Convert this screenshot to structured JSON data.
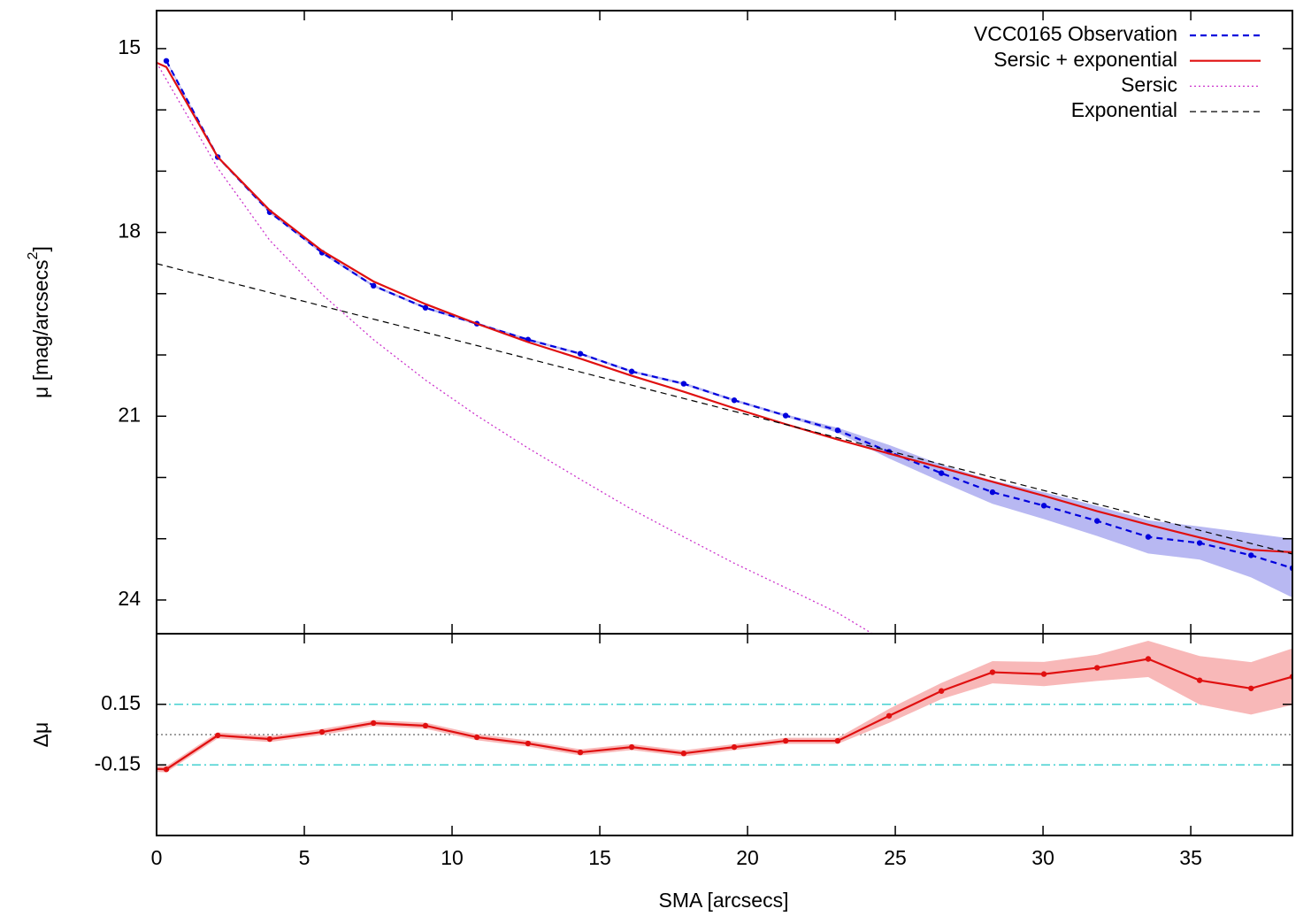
{
  "chart_data": [
    {
      "type": "line",
      "ylabel": [
        "μ [mag/arcsecs",
        "2",
        "]"
      ],
      "xlim": [
        0,
        38.44
      ],
      "ylim": [
        14.38,
        24.55
      ],
      "y_inverted": true,
      "yticks": [
        15,
        18,
        21,
        24
      ],
      "yminorticks": [
        16,
        17,
        19,
        20,
        22,
        23
      ],
      "legend": "upper right",
      "series": [
        {
          "name": "VCC0165 Observation",
          "color": "#0000dd",
          "style": "dashed",
          "markers": true,
          "band_color": "#b8b8f2",
          "x": [
            0.33,
            2.07,
            3.83,
            5.6,
            7.34,
            9.1,
            10.84,
            12.57,
            14.34,
            16.08,
            17.84,
            19.55,
            21.29,
            23.05,
            24.79,
            26.56,
            28.29,
            30.03,
            31.83,
            33.56,
            35.3,
            37.04,
            38.44
          ],
          "values": [
            15.2,
            16.77,
            17.67,
            18.33,
            18.87,
            19.23,
            19.49,
            19.75,
            19.98,
            20.27,
            20.47,
            20.74,
            20.99,
            21.23,
            21.58,
            21.93,
            22.24,
            22.46,
            22.71,
            22.97,
            23.07,
            23.27,
            23.48
          ],
          "errors": [
            0.02,
            0.02,
            0.02,
            0.02,
            0.02,
            0.02,
            0.02,
            0.02,
            0.02,
            0.02,
            0.02,
            0.02,
            0.02,
            0.04,
            0.11,
            0.14,
            0.19,
            0.22,
            0.245,
            0.27,
            0.27,
            0.36,
            0.48
          ]
        },
        {
          "name": "Sersic + exponential",
          "color": "#e01010",
          "style": "solid",
          "x": [
            0,
            0.33,
            2.07,
            3.83,
            5.6,
            7.34,
            9.1,
            10.84,
            12.57,
            14.34,
            16.08,
            17.84,
            19.55,
            21.29,
            23.05,
            24.79,
            26.56,
            28.29,
            30.03,
            31.83,
            33.56,
            35.3,
            37.04,
            38.44
          ],
          "values": [
            15.23,
            15.3,
            16.77,
            17.64,
            18.3,
            18.8,
            19.17,
            19.49,
            19.79,
            20.06,
            20.34,
            20.6,
            20.87,
            21.13,
            21.38,
            21.61,
            21.84,
            22.07,
            22.3,
            22.55,
            22.77,
            22.98,
            23.18,
            23.22
          ]
        },
        {
          "name": "Sersic",
          "color": "#cc33cc",
          "style": "dotted",
          "x": [
            0,
            2.07,
            3.83,
            5.6,
            7.34,
            9.1,
            10.84,
            12.57,
            14.34,
            16.08,
            17.84,
            19.55,
            21.29,
            23.05,
            24.19
          ],
          "values": [
            15.23,
            16.95,
            18.13,
            19.01,
            19.75,
            20.41,
            20.99,
            21.52,
            22.03,
            22.52,
            22.97,
            23.4,
            23.8,
            24.21,
            24.54
          ]
        },
        {
          "name": "Exponential",
          "color": "#000000",
          "style": "dashed",
          "x": [
            0,
            38.44
          ],
          "values": [
            18.51,
            23.25
          ]
        }
      ]
    },
    {
      "type": "line",
      "ylabel": "Δμ",
      "xlabel": "SMA [arcsecs]",
      "xlim": [
        0,
        38.44
      ],
      "xticks": [
        0,
        5,
        10,
        15,
        20,
        25,
        30,
        35
      ],
      "ylim": [
        -0.5,
        0.5
      ],
      "yticks": [
        0.15,
        -0.15
      ],
      "hlines": [
        {
          "value": 0.15,
          "color": "#33cccc",
          "style": "dashdot"
        },
        {
          "value": -0.15,
          "color": "#33cccc",
          "style": "dashdot"
        },
        {
          "value": 0,
          "color": "#666666",
          "style": "dotted"
        }
      ],
      "series": [
        {
          "color": "#e01010",
          "style": "solid",
          "markers": true,
          "band_color": "#f8b8b8",
          "x": [
            0,
            0.33,
            2.07,
            3.83,
            5.6,
            7.34,
            9.1,
            10.84,
            12.57,
            14.34,
            16.08,
            17.84,
            19.55,
            21.29,
            23.05,
            24.79,
            26.56,
            28.29,
            30.03,
            31.83,
            33.56,
            35.3,
            37.04,
            38.44
          ],
          "values": [
            -0.17,
            -0.172,
            -0.004,
            -0.022,
            0.013,
            0.057,
            0.044,
            -0.013,
            -0.044,
            -0.088,
            -0.062,
            -0.093,
            -0.062,
            -0.031,
            -0.031,
            0.093,
            0.216,
            0.309,
            0.3,
            0.331,
            0.375,
            0.269,
            0.229,
            0.287
          ],
          "errors": [
            0.015,
            0.015,
            0.015,
            0.015,
            0.015,
            0.015,
            0.015,
            0.015,
            0.015,
            0.015,
            0.015,
            0.015,
            0.015,
            0.015,
            0.015,
            0.035,
            0.04,
            0.055,
            0.06,
            0.065,
            0.09,
            0.12,
            0.13,
            0.14
          ]
        }
      ]
    }
  ]
}
